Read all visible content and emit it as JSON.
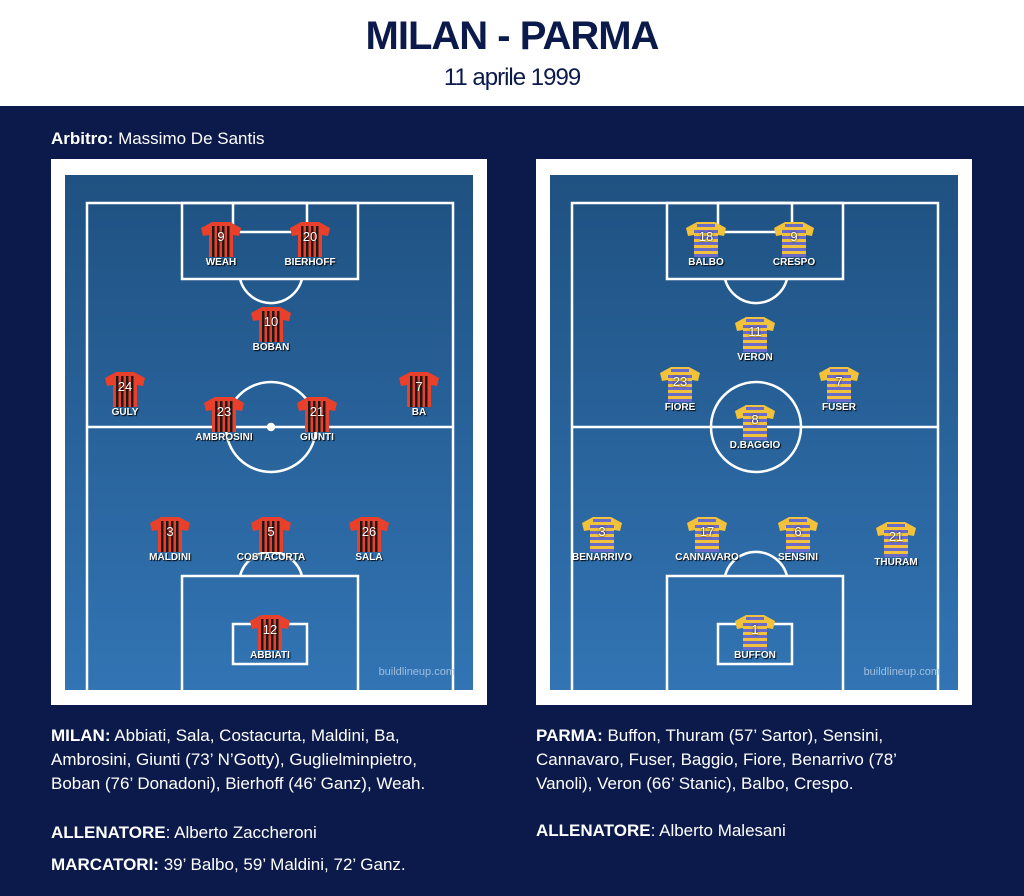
{
  "title": "MILAN - PARMA",
  "date": "11 aprile 1999",
  "referee": {
    "label": "Arbitro:",
    "name": "Massimo De Santis"
  },
  "credit": "buildlineup.com",
  "colors": {
    "background": "#0b1a4a",
    "pitch": "#2a64a0",
    "milan_red": "#e8402a",
    "milan_black": "#1a1a1a",
    "parma_yellow": "#f2c23a",
    "parma_blue": "#6a6ac8"
  },
  "milan": {
    "players": [
      {
        "number": "9",
        "name": "WEAH"
      },
      {
        "number": "20",
        "name": "BIERHOFF"
      },
      {
        "number": "10",
        "name": "BOBAN"
      },
      {
        "number": "24",
        "name": "GULY"
      },
      {
        "number": "7",
        "name": "BA"
      },
      {
        "number": "23",
        "name": "AMBROSINI"
      },
      {
        "number": "21",
        "name": "GIUNTI"
      },
      {
        "number": "3",
        "name": "MALDINI"
      },
      {
        "number": "5",
        "name": "COSTACURTA"
      },
      {
        "number": "26",
        "name": "SALA"
      },
      {
        "number": "12",
        "name": "ABBIATI"
      }
    ],
    "lineup_label": "MILAN:",
    "lineup": "Abbiati, Sala, Costacurta, Maldini, Ba, Ambrosini, Giunti (73’ N’Gotty), Guglielminpietro, Boban (76’ Donadoni), Bierhoff (46’ Ganz), Weah.",
    "coach_label": "ALLENATORE",
    "coach": ": Alberto Zaccheroni",
    "scorers_label": "MARCATORI:",
    "scorers": "39’ Balbo, 59’ Maldini, 72’ Ganz."
  },
  "parma": {
    "players": [
      {
        "number": "18",
        "name": "BALBO"
      },
      {
        "number": "9",
        "name": "CRESPO"
      },
      {
        "number": "11",
        "name": "VERON"
      },
      {
        "number": "23",
        "name": "FIORE"
      },
      {
        "number": "7",
        "name": "FUSER"
      },
      {
        "number": "8",
        "name": "D.BAGGIO"
      },
      {
        "number": "3",
        "name": "BENARRIVO"
      },
      {
        "number": "17",
        "name": "CANNAVARO"
      },
      {
        "number": "6",
        "name": "SENSINI"
      },
      {
        "number": "21",
        "name": "THURAM"
      },
      {
        "number": "1",
        "name": "BUFFON"
      }
    ],
    "lineup_label": "PARMA:",
    "lineup": "Buffon, Thuram (57’ Sartor), Sensini, Cannavaro, Fuser, Baggio, Fiore, Benarrivo (78’ Vanoli), Veron (66’ Stanic), Balbo, Crespo.",
    "coach_label": "ALLENATORE",
    "coach": ": Alberto Malesani"
  }
}
